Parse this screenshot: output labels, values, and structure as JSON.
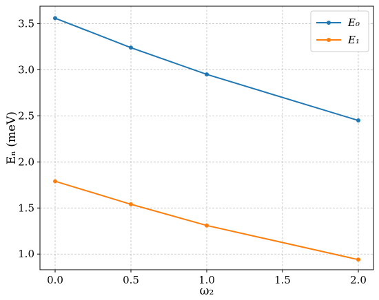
{
  "chart_data": {
    "type": "line",
    "title": "",
    "xlabel": "ω₂",
    "ylabel": "Eₙ (meV)",
    "xlim": [
      -0.1,
      2.1
    ],
    "ylim": [
      0.83,
      3.69
    ],
    "xticks": [
      0.0,
      0.5,
      1.0,
      1.5,
      2.0
    ],
    "xtick_labels": [
      "0.0",
      "0.5",
      "1.0",
      "1.5",
      "2.0"
    ],
    "yticks": [
      1.0,
      1.5,
      2.0,
      2.5,
      3.0,
      3.5
    ],
    "ytick_labels": [
      "1.0",
      "1.5",
      "2.0",
      "2.5",
      "3.0",
      "3.5"
    ],
    "grid": true,
    "legend_position": "top-right",
    "x": [
      0.0,
      0.5,
      1.0,
      2.0
    ],
    "series": [
      {
        "name": "E₀",
        "color": "#1f77b4",
        "values": [
          3.56,
          3.24,
          2.95,
          2.45
        ]
      },
      {
        "name": "E₁",
        "color": "#ff7f0e",
        "values": [
          1.79,
          1.54,
          1.31,
          0.94
        ]
      }
    ]
  }
}
